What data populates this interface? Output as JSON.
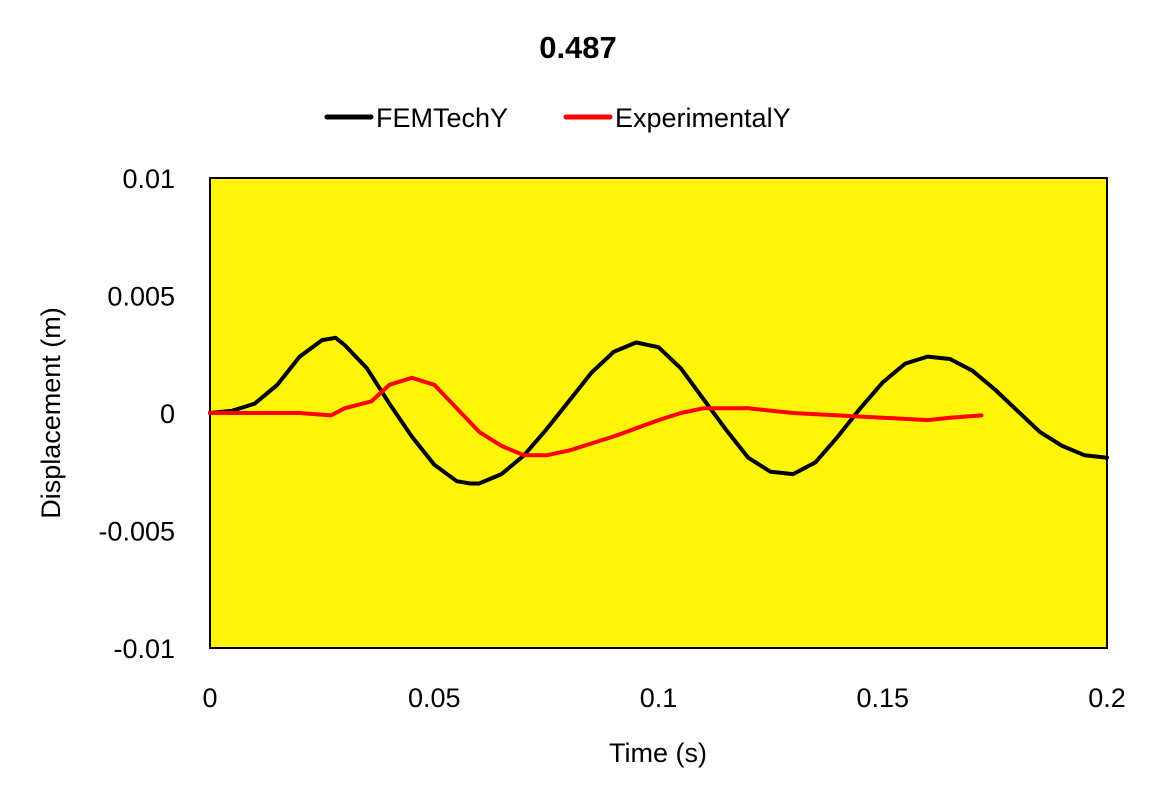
{
  "chart_data": {
    "type": "line",
    "title": "0.487",
    "xlabel": "Time (s)",
    "ylabel": "Displacement (m)",
    "xlim": [
      0,
      0.2
    ],
    "ylim": [
      -0.01,
      0.01
    ],
    "x_ticks": [
      0,
      0.05,
      0.1,
      0.15,
      0.2
    ],
    "x_tick_labels": [
      "0",
      "0.05",
      "0.1",
      "0.15",
      "0.2"
    ],
    "y_ticks": [
      0.01,
      0.005,
      0,
      -0.005,
      -0.01
    ],
    "y_tick_labels": [
      "0.01",
      "0.005",
      "0",
      "-0.005",
      "-0.01"
    ],
    "grid": false,
    "legend_position": "top",
    "plot_background": "#FFF50A",
    "series": [
      {
        "name": "FEMTechY",
        "color": "#000000",
        "x": [
          0,
          0.005,
          0.01,
          0.015,
          0.02,
          0.025,
          0.028,
          0.03,
          0.035,
          0.04,
          0.045,
          0.05,
          0.055,
          0.058,
          0.06,
          0.065,
          0.07,
          0.075,
          0.08,
          0.085,
          0.09,
          0.095,
          0.1,
          0.105,
          0.11,
          0.115,
          0.12,
          0.125,
          0.13,
          0.135,
          0.14,
          0.145,
          0.15,
          0.155,
          0.16,
          0.165,
          0.17,
          0.175,
          0.18,
          0.185,
          0.19,
          0.195,
          0.2
        ],
        "y": [
          0.0,
          0.0001,
          0.0004,
          0.0012,
          0.0024,
          0.0031,
          0.0032,
          0.0029,
          0.0019,
          0.0004,
          -0.001,
          -0.0022,
          -0.0029,
          -0.003,
          -0.003,
          -0.0026,
          -0.0018,
          -0.0007,
          0.0005,
          0.0017,
          0.0026,
          0.003,
          0.0028,
          0.0019,
          0.0006,
          -0.0007,
          -0.0019,
          -0.0025,
          -0.0026,
          -0.0021,
          -0.001,
          0.0002,
          0.0013,
          0.0021,
          0.0024,
          0.0023,
          0.0018,
          0.001,
          0.0001,
          -0.0008,
          -0.0014,
          -0.0018,
          -0.0019
        ]
      },
      {
        "name": "ExperimentalY",
        "color": "#FF0000",
        "x": [
          0,
          0.01,
          0.02,
          0.027,
          0.03,
          0.036,
          0.04,
          0.045,
          0.05,
          0.055,
          0.06,
          0.065,
          0.07,
          0.075,
          0.08,
          0.09,
          0.1,
          0.105,
          0.11,
          0.117,
          0.12,
          0.13,
          0.14,
          0.15,
          0.16,
          0.165,
          0.172
        ],
        "y": [
          0.0,
          0.0,
          0.0,
          -0.0001,
          0.0002,
          0.0005,
          0.0012,
          0.0015,
          0.0012,
          0.0002,
          -0.0008,
          -0.0014,
          -0.0018,
          -0.0018,
          -0.0016,
          -0.001,
          -0.0003,
          0.0,
          0.0002,
          0.0002,
          0.0002,
          0.0,
          -0.0001,
          -0.0002,
          -0.0003,
          -0.0002,
          -0.0001
        ]
      }
    ]
  }
}
